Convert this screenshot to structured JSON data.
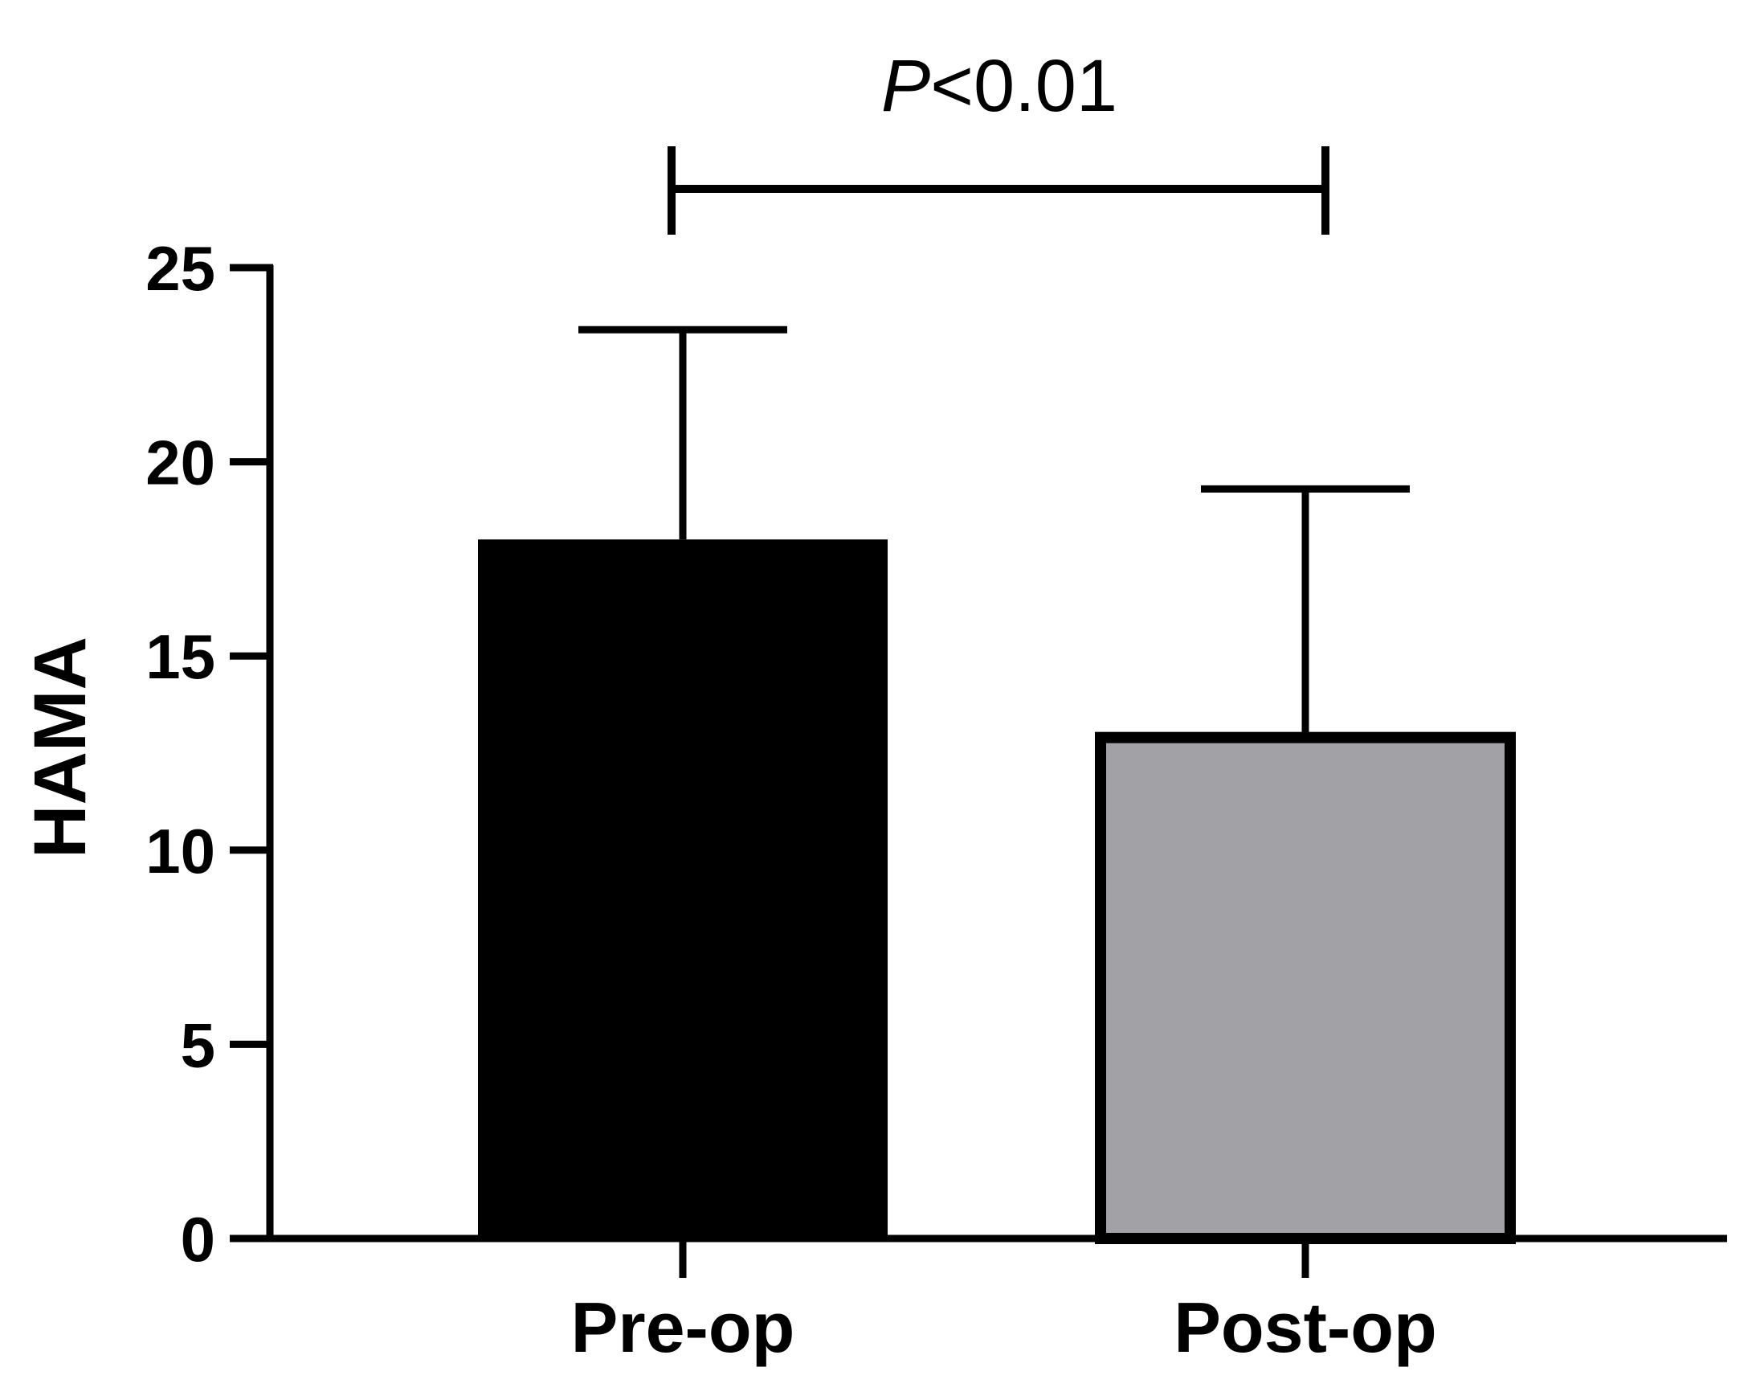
{
  "chart_data": {
    "type": "bar",
    "categories": [
      "Pre-op",
      "Post-op"
    ],
    "values": [
      18.0,
      12.9
    ],
    "error_upper": [
      23.4,
      19.3
    ],
    "colors": [
      "#000000",
      "#a2a1a6"
    ],
    "xlabel": "",
    "ylabel": "HAMA",
    "ylim": [
      0,
      25
    ],
    "yticks": [
      0,
      5,
      10,
      15,
      20,
      25
    ],
    "grid": false,
    "significance": {
      "between": [
        "Pre-op",
        "Post-op"
      ],
      "p_symbol": "P",
      "p_rest": "<0.01"
    }
  }
}
